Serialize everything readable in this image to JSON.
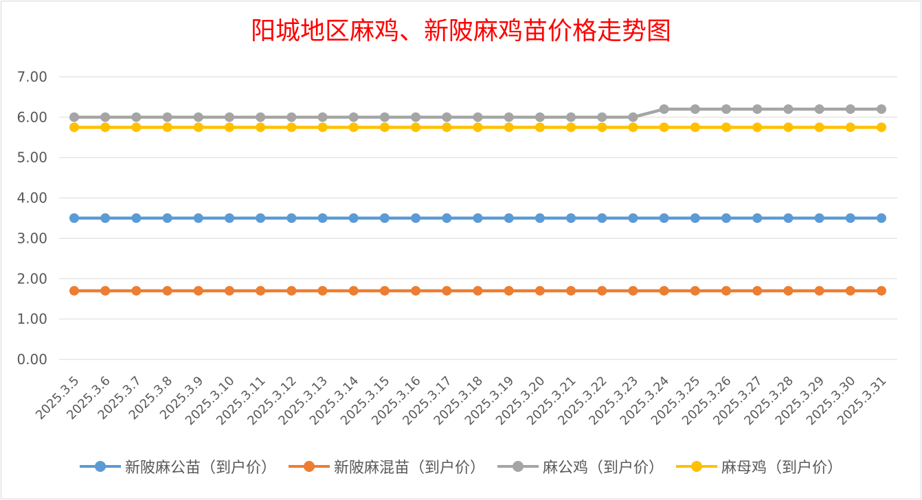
{
  "chart_data": {
    "type": "line",
    "title": "阳城地区麻鸡、新陂麻鸡苗价格走势图",
    "categories": [
      "2025.3.5",
      "2025.3.6",
      "2025.3.7",
      "2025.3.8",
      "2025.3.9",
      "2025.3.10",
      "2025.3.11",
      "2025.3.12",
      "2025.3.13",
      "2025.3.14",
      "2025.3.15",
      "2025.3.16",
      "2025.3.17",
      "2025.3.18",
      "2025.3.19",
      "2025.3.20",
      "2025.3.21",
      "2025.3.22",
      "2025.3.23",
      "2025.3.24",
      "2025.3.25",
      "2025.3.26",
      "2025.3.27",
      "2025.3.28",
      "2025.3.29",
      "2025.3.30",
      "2025.3.31"
    ],
    "ylim": [
      0,
      7
    ],
    "yticks": [
      "0.00",
      "1.00",
      "2.00",
      "3.00",
      "4.00",
      "5.00",
      "6.00",
      "7.00"
    ],
    "grid": true,
    "legend_position": "bottom",
    "series": [
      {
        "name": "新陂麻公苗（到户价）",
        "color": "#5b9bd5",
        "values": [
          3.5,
          3.5,
          3.5,
          3.5,
          3.5,
          3.5,
          3.5,
          3.5,
          3.5,
          3.5,
          3.5,
          3.5,
          3.5,
          3.5,
          3.5,
          3.5,
          3.5,
          3.5,
          3.5,
          3.5,
          3.5,
          3.5,
          3.5,
          3.5,
          3.5,
          3.5,
          3.5
        ]
      },
      {
        "name": "新陂麻混苗（到户价）",
        "color": "#ed7d31",
        "values": [
          1.7,
          1.7,
          1.7,
          1.7,
          1.7,
          1.7,
          1.7,
          1.7,
          1.7,
          1.7,
          1.7,
          1.7,
          1.7,
          1.7,
          1.7,
          1.7,
          1.7,
          1.7,
          1.7,
          1.7,
          1.7,
          1.7,
          1.7,
          1.7,
          1.7,
          1.7,
          1.7
        ]
      },
      {
        "name": "麻公鸡（到户价）",
        "color": "#a5a5a5",
        "values": [
          6.0,
          6.0,
          6.0,
          6.0,
          6.0,
          6.0,
          6.0,
          6.0,
          6.0,
          6.0,
          6.0,
          6.0,
          6.0,
          6.0,
          6.0,
          6.0,
          6.0,
          6.0,
          6.0,
          6.2,
          6.2,
          6.2,
          6.2,
          6.2,
          6.2,
          6.2,
          6.2
        ]
      },
      {
        "name": "麻母鸡（到户价）",
        "color": "#ffc000",
        "values": [
          5.75,
          5.75,
          5.75,
          5.75,
          5.75,
          5.75,
          5.75,
          5.75,
          5.75,
          5.75,
          5.75,
          5.75,
          5.75,
          5.75,
          5.75,
          5.75,
          5.75,
          5.75,
          5.75,
          5.75,
          5.75,
          5.75,
          5.75,
          5.75,
          5.75,
          5.75,
          5.75
        ]
      }
    ]
  }
}
